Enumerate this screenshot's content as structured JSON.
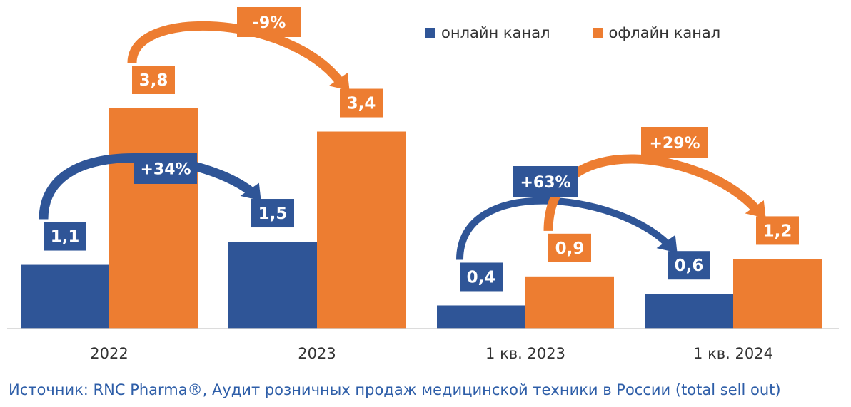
{
  "chart_data": {
    "type": "bar",
    "categories": [
      "2022",
      "2023",
      "1 кв. 2023",
      "1 кв. 2024"
    ],
    "series": [
      {
        "name": "онлайн канал",
        "color": "#2f5597",
        "values": [
          1.1,
          1.5,
          0.4,
          0.6
        ],
        "labels": [
          "1,1",
          "1,5",
          "0,4",
          "0,6"
        ]
      },
      {
        "name": "офлайн канал",
        "color": "#ed7d31",
        "values": [
          3.8,
          3.4,
          0.9,
          1.2
        ],
        "labels": [
          "3,8",
          "3,4",
          "0,9",
          "1,2"
        ]
      }
    ],
    "ylim": [
      0,
      3.8
    ],
    "annotations": [
      {
        "text": "-9%",
        "series": "офлайн канал",
        "from": "2022",
        "to": "2023"
      },
      {
        "text": "+34%",
        "series": "онлайн канал",
        "from": "2022",
        "to": "2023"
      },
      {
        "text": "+63%",
        "series": "онлайн канал",
        "from": "1 кв. 2023",
        "to": "1 кв. 2024"
      },
      {
        "text": "+29%",
        "series": "офлайн канал",
        "from": "1 кв. 2023",
        "to": "1 кв. 2024"
      }
    ],
    "legend_position": "top-right",
    "grid": false
  },
  "source": "Источник: RNC Pharma®, Аудит розничных продаж медицинской техники в России (total sell out)"
}
